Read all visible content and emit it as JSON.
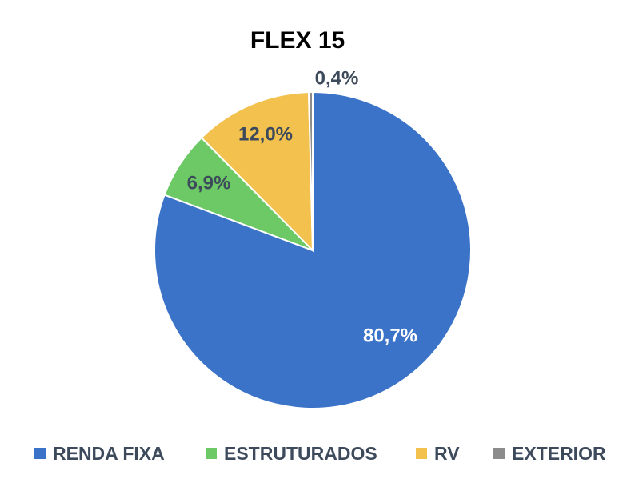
{
  "chart_data": {
    "type": "pie",
    "title": "FLEX 15",
    "slices": [
      {
        "name": "RENDA FIXA",
        "value": 80.7,
        "label": "80,7%",
        "color": "#3b73c8",
        "label_color": "#ffffff"
      },
      {
        "name": "ESTRUTURADOS",
        "value": 6.9,
        "label": "6,9%",
        "color": "#6cc965",
        "label_color": "#3d4a5c"
      },
      {
        "name": "RV",
        "value": 12.0,
        "label": "12,0%",
        "color": "#f2c14e",
        "label_color": "#3d4a5c"
      },
      {
        "name": "EXTERIOR",
        "value": 0.4,
        "label": "0,4%",
        "color": "#8c8c8c",
        "label_color": "#3d4a5c"
      }
    ],
    "legend_position": "bottom",
    "start_angle": "12 o'clock",
    "direction": "clockwise"
  }
}
